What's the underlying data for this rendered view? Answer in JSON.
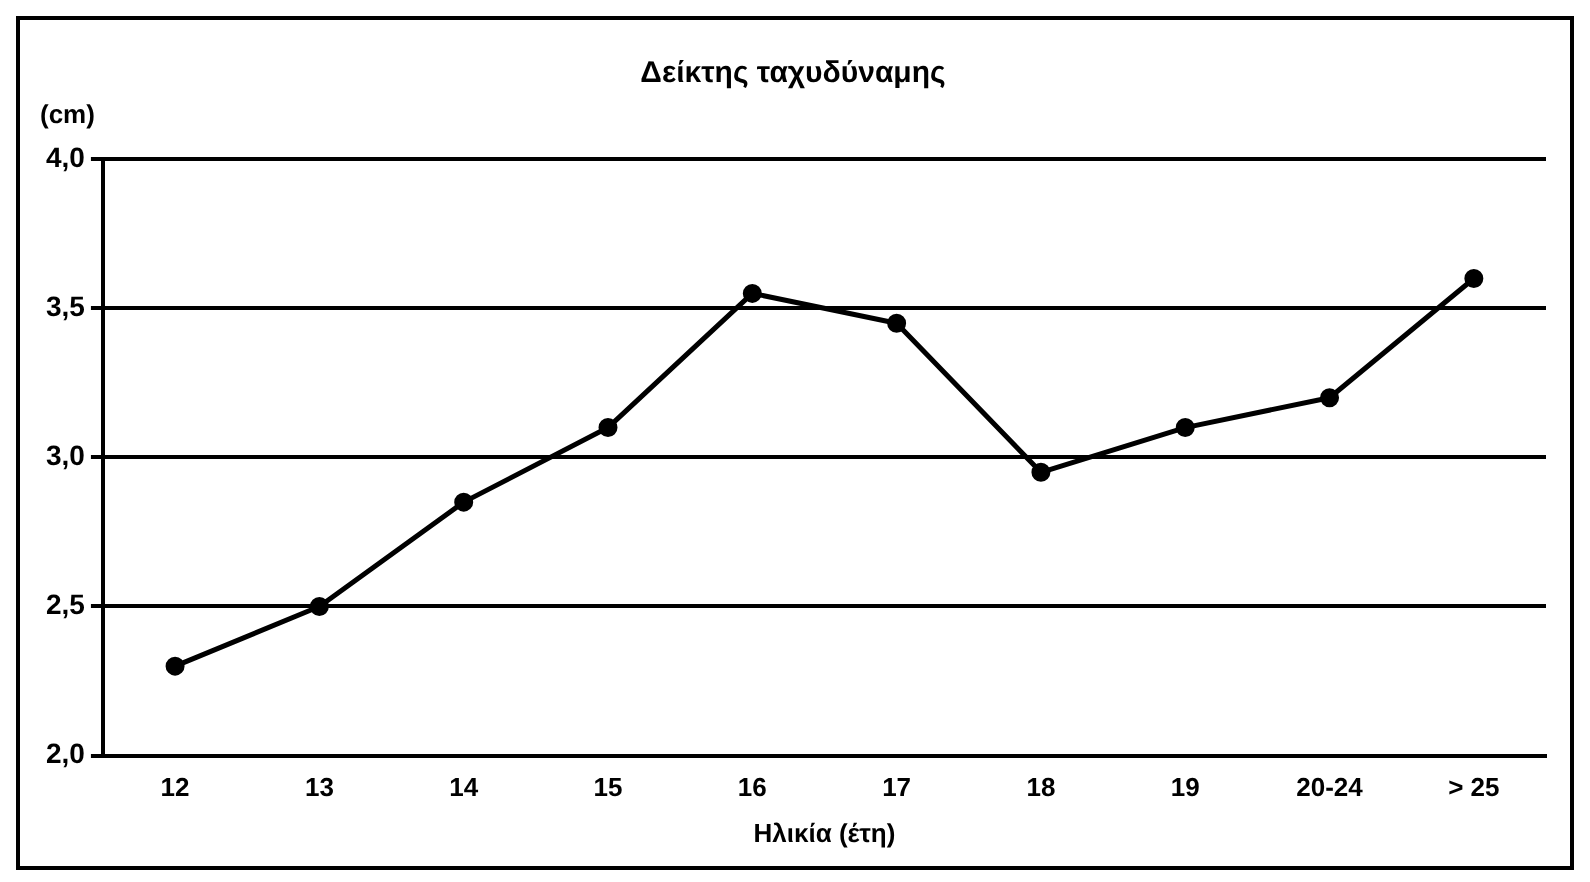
{
  "chart_data": {
    "type": "line",
    "title": "Δείκτης ταχυδύναμης",
    "ylabel": "(cm)",
    "xlabel": "Ηλικία (έτη)",
    "categories": [
      "12",
      "13",
      "14",
      "15",
      "16",
      "17",
      "18",
      "19",
      "20-24",
      "> 25"
    ],
    "series": [
      {
        "color": "#000000",
        "values": [
          2.3,
          2.5,
          2.85,
          3.1,
          3.55,
          3.45,
          2.95,
          3.1,
          3.2,
          3.6
        ]
      }
    ],
    "ylim": [
      2,
      4
    ],
    "yticks": [
      {
        "value": 2,
        "label": "2,0"
      },
      {
        "value": 2.5,
        "label": "2,5"
      },
      {
        "value": 3,
        "label": "3,0"
      },
      {
        "value": 3.5,
        "label": "3,5"
      },
      {
        "value": 4,
        "label": "4,0"
      }
    ],
    "grid": "y",
    "legend": false,
    "marker": "circle",
    "line_style": "solid"
  }
}
